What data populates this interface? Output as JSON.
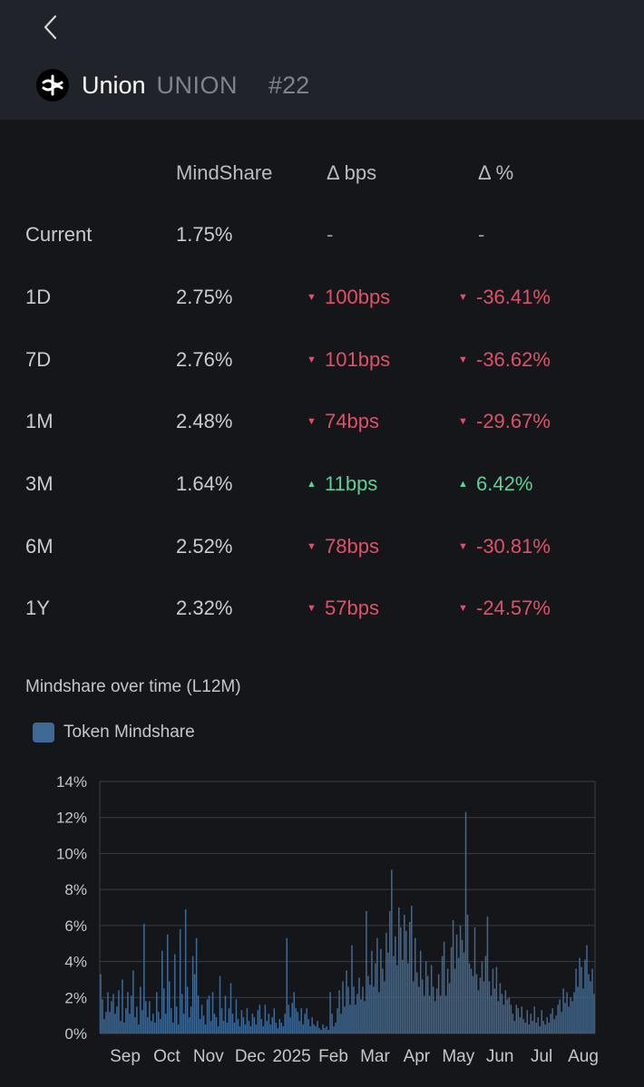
{
  "header": {
    "name": "Union",
    "ticker": "UNION",
    "rank": "#22"
  },
  "table": {
    "columns": [
      "MindShare",
      "Δ bps",
      "Δ %"
    ],
    "rows": [
      {
        "period": "Current",
        "mindshare": "1.75%",
        "bps": "-",
        "pct": "-",
        "dir": "none"
      },
      {
        "period": "1D",
        "mindshare": "2.75%",
        "bps": "100bps",
        "pct": "-36.41%",
        "dir": "down"
      },
      {
        "period": "7D",
        "mindshare": "2.76%",
        "bps": "101bps",
        "pct": "-36.62%",
        "dir": "down"
      },
      {
        "period": "1M",
        "mindshare": "2.48%",
        "bps": "74bps",
        "pct": "-29.67%",
        "dir": "down"
      },
      {
        "period": "3M",
        "mindshare": "1.64%",
        "bps": "11bps",
        "pct": "6.42%",
        "dir": "up"
      },
      {
        "period": "6M",
        "mindshare": "2.52%",
        "bps": "78bps",
        "pct": "-30.81%",
        "dir": "down"
      },
      {
        "period": "1Y",
        "mindshare": "2.32%",
        "bps": "57bps",
        "pct": "-24.57%",
        "dir": "down"
      }
    ]
  },
  "chart_section": {
    "title": "Mindshare over time (L12M)",
    "legend": "Token Mindshare"
  },
  "colors": {
    "negative": "#e0506a",
    "positive": "#5fd197",
    "bar": "#3f6a95"
  },
  "chart_data": {
    "type": "bar",
    "title": "Mindshare over time (L12M)",
    "series": [
      {
        "name": "Token Mindshare",
        "values": [
          3.3,
          1.9,
          0.8,
          1.2,
          2.3,
          1.2,
          1.8,
          2.2,
          1.1,
          1.5,
          2.4,
          0.7,
          3.0,
          0.6,
          1.4,
          2.3,
          1.1,
          2.1,
          3.5,
          0.9,
          1.5,
          0.5,
          2.6,
          1.3,
          6.1,
          1.8,
          0.9,
          1.8,
          0.7,
          1.1,
          0.6,
          2.3,
          1.2,
          0.8,
          4.6,
          2.5,
          1.1,
          5.5,
          2.9,
          1.4,
          0.6,
          4.4,
          1.5,
          0.5,
          5.8,
          2.2,
          1.1,
          6.9,
          2.6,
          0.9,
          1.5,
          4.3,
          3.3,
          5.3,
          2.1,
          0.8,
          1.6,
          1.0,
          0.5,
          1.9,
          2.1,
          0.7,
          2.3,
          1.1,
          0.9,
          0.4,
          3.2,
          1.4,
          0.7,
          2.1,
          0.6,
          1.4,
          2.8,
          1.1,
          0.6,
          1.9,
          0.8,
          0.4,
          1.3,
          0.9,
          0.5,
          1.4,
          0.7,
          0.4,
          1.1,
          0.9,
          0.5,
          1.3,
          1.6,
          0.8,
          0.4,
          1.6,
          0.7,
          1.1,
          0.5,
          0.9,
          1.4,
          0.6,
          0.3,
          0.8,
          0.6,
          0.4,
          1.1,
          5.3,
          1.6,
          0.9,
          1.7,
          2.3,
          1.4,
          1.2,
          0.7,
          1.4,
          0.5,
          1.1,
          1.4,
          0.8,
          0.4,
          0.9,
          0.5,
          0.4,
          0.7,
          0.3,
          0.2,
          0.5,
          0.3,
          0.4,
          0.2,
          2.3,
          1.1,
          0.4,
          0.6,
          1.4,
          2.4,
          1.1,
          2.9,
          1.5,
          3.5,
          2.6,
          1.6,
          4.9,
          2.6,
          1.6,
          2.2,
          3.1,
          1.9,
          2.6,
          1.8,
          6.8,
          3.2,
          2.7,
          4.6,
          2.6,
          3.9,
          5.3,
          2.3,
          4.7,
          3.6,
          2.9,
          5.6,
          4.5,
          6.8,
          9.1,
          4.3,
          5.4,
          3.8,
          7.0,
          5.9,
          4.1,
          6.6,
          5.7,
          3.9,
          6.2,
          7.1,
          2.9,
          5.3,
          3.4,
          2.6,
          4.6,
          3.0,
          2.1,
          4.0,
          3.2,
          2.1,
          3.8,
          2.6,
          1.8,
          2.5,
          3.3,
          2.1,
          4.3,
          5.1,
          2.1,
          3.6,
          2.8,
          4.8,
          6.3,
          3.6,
          5.5,
          4.2,
          6.0,
          5.2,
          4.5,
          12.3,
          6.6,
          3.9,
          3.6,
          3.2,
          5.9,
          3.3,
          2.4,
          3.1,
          4.0,
          2.9,
          4.3,
          6.5,
          2.9,
          2.1,
          3.6,
          2.5,
          3.7,
          1.8,
          2.8,
          2.2,
          1.6,
          2.4,
          1.9,
          2.0,
          1.6,
          1.1,
          0.7,
          1.6,
          1.4,
          0.9,
          1.5,
          0.8,
          0.6,
          1.3,
          0.5,
          1.1,
          0.7,
          1.5,
          0.6,
          0.9,
          0.4,
          1.3,
          0.7,
          0.5,
          0.9,
          0.6,
          1.1,
          1.4,
          0.8,
          1.0,
          1.6,
          1.9,
          1.2,
          2.5,
          1.7,
          2.3,
          1.5,
          2.0,
          1.8,
          2.3,
          3.6,
          2.6,
          4.2,
          3.7,
          2.5,
          4.1,
          4.9,
          3.3,
          2.9,
          3.6,
          2.2
        ]
      }
    ],
    "xticks": [
      "Sep",
      "Oct",
      "Nov",
      "Dec",
      "2025",
      "Feb",
      "Mar",
      "Apr",
      "May",
      "Jun",
      "Jul",
      "Aug"
    ],
    "yticks": [
      "0%",
      "2%",
      "4%",
      "6%",
      "8%",
      "10%",
      "12%",
      "14%"
    ],
    "ylim": [
      0,
      14
    ],
    "ylabel": "",
    "xlabel": ""
  }
}
